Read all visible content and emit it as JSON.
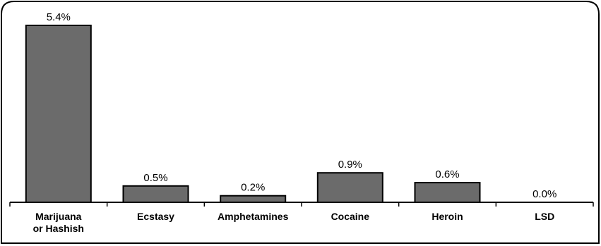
{
  "chart_data": {
    "type": "bar",
    "title": "",
    "xlabel": "",
    "ylabel": "",
    "categories": [
      [
        "Marijuana",
        "or Hashish"
      ],
      [
        "Ecstasy"
      ],
      [
        "Amphetamines"
      ],
      [
        "Cocaine"
      ],
      [
        "Heroin"
      ],
      [
        "LSD"
      ]
    ],
    "values": [
      5.4,
      0.5,
      0.2,
      0.9,
      0.6,
      0.0
    ],
    "data_labels": [
      "5.4%",
      "0.5%",
      "0.2%",
      "0.9%",
      "0.6%",
      "0.0%"
    ],
    "ylim": [
      0,
      5.4
    ],
    "grid": false,
    "legend": "none",
    "bar_color": "#6b6b6b"
  }
}
